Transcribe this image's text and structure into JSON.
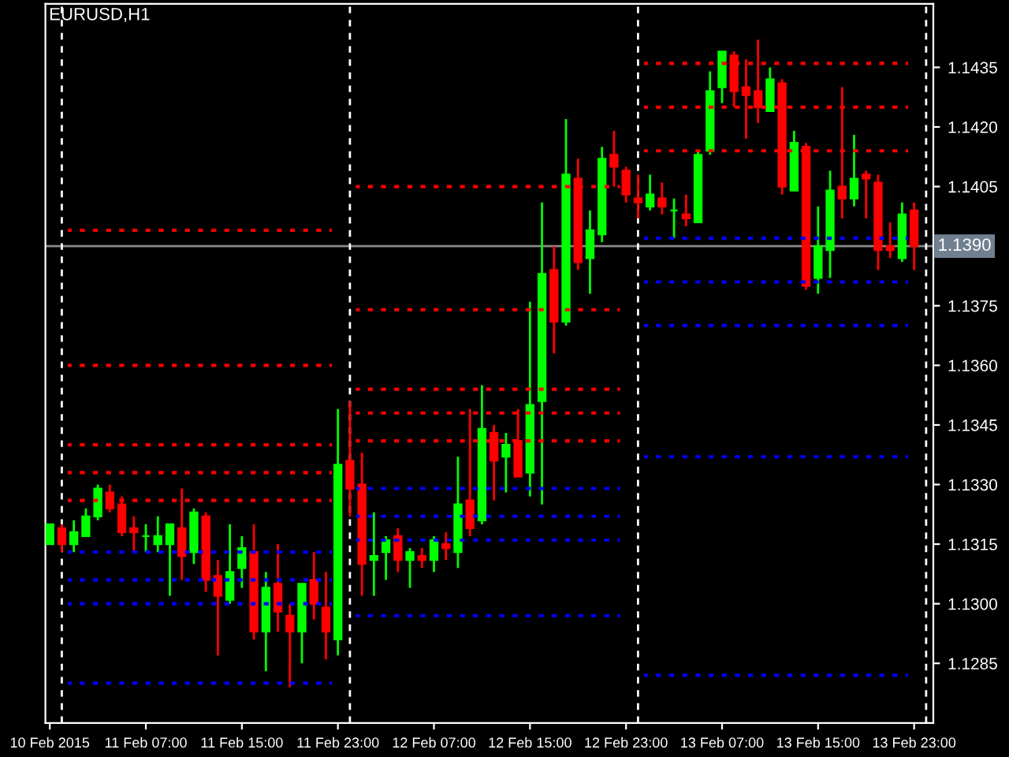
{
  "chart_data": {
    "type": "candlestick",
    "title": "EURUSD,H1",
    "x": [
      "2015-02-10T23:00",
      "2015-02-11T00:00",
      "2015-02-11T01:00",
      "2015-02-11T02:00",
      "2015-02-11T03:00",
      "2015-02-11T04:00",
      "2015-02-11T05:00",
      "2015-02-11T06:00",
      "2015-02-11T07:00",
      "2015-02-11T08:00",
      "2015-02-11T09:00",
      "2015-02-11T10:00",
      "2015-02-11T11:00",
      "2015-02-11T12:00",
      "2015-02-11T13:00",
      "2015-02-11T14:00",
      "2015-02-11T15:00",
      "2015-02-11T16:00",
      "2015-02-11T17:00",
      "2015-02-11T18:00",
      "2015-02-11T19:00",
      "2015-02-11T20:00",
      "2015-02-11T21:00",
      "2015-02-11T22:00",
      "2015-02-11T23:00",
      "2015-02-12T00:00",
      "2015-02-12T01:00",
      "2015-02-12T02:00",
      "2015-02-12T03:00",
      "2015-02-12T04:00",
      "2015-02-12T05:00",
      "2015-02-12T06:00",
      "2015-02-12T07:00",
      "2015-02-12T08:00",
      "2015-02-12T09:00",
      "2015-02-12T10:00",
      "2015-02-12T11:00",
      "2015-02-12T12:00",
      "2015-02-12T13:00",
      "2015-02-12T14:00",
      "2015-02-12T15:00",
      "2015-02-12T16:00",
      "2015-02-12T17:00",
      "2015-02-12T18:00",
      "2015-02-12T19:00",
      "2015-02-12T20:00",
      "2015-02-12T21:00",
      "2015-02-12T22:00",
      "2015-02-12T23:00",
      "2015-02-13T00:00",
      "2015-02-13T01:00",
      "2015-02-13T02:00",
      "2015-02-13T03:00",
      "2015-02-13T04:00",
      "2015-02-13T05:00",
      "2015-02-13T06:00",
      "2015-02-13T07:00",
      "2015-02-13T08:00",
      "2015-02-13T09:00",
      "2015-02-13T10:00",
      "2015-02-13T11:00",
      "2015-02-13T12:00",
      "2015-02-13T13:00",
      "2015-02-13T14:00",
      "2015-02-13T15:00",
      "2015-02-13T16:00",
      "2015-02-13T17:00",
      "2015-02-13T18:00",
      "2015-02-13T19:00",
      "2015-02-13T20:00",
      "2015-02-13T21:00",
      "2015-02-13T22:00",
      "2015-02-13T23:00"
    ],
    "ohlc": [
      [
        1.1315,
        1.132,
        1.1315,
        1.132
      ],
      [
        1.1319,
        1.132,
        1.1313,
        1.1315
      ],
      [
        1.1315,
        1.1321,
        1.1313,
        1.1318
      ],
      [
        1.1317,
        1.1324,
        1.1317,
        1.1322
      ],
      [
        1.1322,
        1.133,
        1.1321,
        1.1329
      ],
      [
        1.1328,
        1.133,
        1.1323,
        1.1324
      ],
      [
        1.1325,
        1.1327,
        1.1317,
        1.1318
      ],
      [
        1.1319,
        1.1322,
        1.1313,
        1.1318
      ],
      [
        1.1317,
        1.132,
        1.1313,
        1.1317
      ],
      [
        1.1315,
        1.1322,
        1.1313,
        1.1317
      ],
      [
        1.1315,
        1.132,
        1.1302,
        1.132
      ],
      [
        1.1319,
        1.1329,
        1.1306,
        1.1312
      ],
      [
        1.1313,
        1.1324,
        1.131,
        1.1323
      ],
      [
        1.1322,
        1.1323,
        1.1303,
        1.1306
      ],
      [
        1.1307,
        1.1311,
        1.1287,
        1.1302
      ],
      [
        1.1301,
        1.132,
        1.13,
        1.1308
      ],
      [
        1.1309,
        1.1317,
        1.1304,
        1.1314
      ],
      [
        1.1313,
        1.132,
        1.1291,
        1.1293
      ],
      [
        1.1293,
        1.1308,
        1.1283,
        1.1304
      ],
      [
        1.1305,
        1.1315,
        1.1293,
        1.1298
      ],
      [
        1.1297,
        1.13,
        1.1279,
        1.1293
      ],
      [
        1.1293,
        1.1305,
        1.1285,
        1.1305
      ],
      [
        1.1306,
        1.1313,
        1.1296,
        1.13
      ],
      [
        1.1299,
        1.1308,
        1.1286,
        1.1293
      ],
      [
        1.1291,
        1.1349,
        1.1287,
        1.1335
      ],
      [
        1.1336,
        1.1351,
        1.1322,
        1.1329
      ],
      [
        1.133,
        1.1338,
        1.1302,
        1.131
      ],
      [
        1.1311,
        1.1323,
        1.1302,
        1.1312
      ],
      [
        1.1313,
        1.1317,
        1.1306,
        1.1316
      ],
      [
        1.1317,
        1.1319,
        1.1308,
        1.1311
      ],
      [
        1.1311,
        1.1314,
        1.1304,
        1.1313
      ],
      [
        1.1312,
        1.1314,
        1.1309,
        1.1311
      ],
      [
        1.1311,
        1.1317,
        1.1308,
        1.1316
      ],
      [
        1.1315,
        1.1318,
        1.1311,
        1.1314
      ],
      [
        1.1313,
        1.1337,
        1.1309,
        1.1325
      ],
      [
        1.1326,
        1.1349,
        1.1317,
        1.1319
      ],
      [
        1.1321,
        1.1355,
        1.132,
        1.1344
      ],
      [
        1.1343,
        1.1345,
        1.1326,
        1.1336
      ],
      [
        1.1337,
        1.1343,
        1.1328,
        1.134
      ],
      [
        1.1341,
        1.1349,
        1.1332,
        1.1332
      ],
      [
        1.1333,
        1.1376,
        1.1327,
        1.135
      ],
      [
        1.1351,
        1.1401,
        1.1325,
        1.1383
      ],
      [
        1.1384,
        1.139,
        1.1363,
        1.1371
      ],
      [
        1.1371,
        1.1422,
        1.137,
        1.1408
      ],
      [
        1.1407,
        1.1412,
        1.1384,
        1.1386
      ],
      [
        1.1387,
        1.1399,
        1.1378,
        1.1394
      ],
      [
        1.1393,
        1.1415,
        1.1391,
        1.1412
      ],
      [
        1.1413,
        1.1419,
        1.1405,
        1.141
      ],
      [
        1.1409,
        1.141,
        1.1401,
        1.1403
      ],
      [
        1.1402,
        1.1408,
        1.1397,
        1.1401
      ],
      [
        1.14,
        1.1408,
        1.1399,
        1.1403
      ],
      [
        1.1402,
        1.1406,
        1.1398,
        1.14
      ],
      [
        1.1399,
        1.1402,
        1.1392,
        1.1399
      ],
      [
        1.1398,
        1.1403,
        1.1395,
        1.1397
      ],
      [
        1.1396,
        1.1414,
        1.1396,
        1.1413
      ],
      [
        1.1414,
        1.1434,
        1.1413,
        1.1429
      ],
      [
        1.143,
        1.1439,
        1.1426,
        1.1439
      ],
      [
        1.1438,
        1.1439,
        1.1425,
        1.1429
      ],
      [
        1.143,
        1.1437,
        1.1417,
        1.1428
      ],
      [
        1.1429,
        1.1442,
        1.1421,
        1.1425
      ],
      [
        1.1424,
        1.1435,
        1.1424,
        1.1432
      ],
      [
        1.1431,
        1.1432,
        1.1403,
        1.1405
      ],
      [
        1.1404,
        1.1419,
        1.1404,
        1.1416
      ],
      [
        1.1415,
        1.1416,
        1.1379,
        1.138
      ],
      [
        1.1382,
        1.14,
        1.1378,
        1.139
      ],
      [
        1.1389,
        1.1409,
        1.1382,
        1.1404
      ],
      [
        1.1405,
        1.143,
        1.1397,
        1.1402
      ],
      [
        1.1402,
        1.1418,
        1.14,
        1.1407
      ],
      [
        1.1408,
        1.1409,
        1.1397,
        1.1407
      ],
      [
        1.1406,
        1.1408,
        1.1384,
        1.1389
      ],
      [
        1.139,
        1.1396,
        1.1387,
        1.1389
      ],
      [
        1.1387,
        1.1401,
        1.1386,
        1.1398
      ],
      [
        1.1399,
        1.1401,
        1.1384,
        1.139
      ]
    ],
    "colors": [
      "#00ff00",
      "#ff0000",
      "#00ff00",
      "#00ff00",
      "#00ff00",
      "#ff0000",
      "#ff0000",
      "#ff0000",
      "#00ff00",
      "#00ff00",
      "#00ff00",
      "#ff0000",
      "#00ff00",
      "#ff0000",
      "#ff0000",
      "#00ff00",
      "#00ff00",
      "#ff0000",
      "#00ff00",
      "#ff0000",
      "#ff0000",
      "#00ff00",
      "#ff0000",
      "#ff0000",
      "#00ff00",
      "#ff0000",
      "#ff0000",
      "#00ff00",
      "#00ff00",
      "#ff0000",
      "#00ff00",
      "#ff0000",
      "#00ff00",
      "#ff0000",
      "#00ff00",
      "#ff0000",
      "#00ff00",
      "#ff0000",
      "#00ff00",
      "#ff0000",
      "#00ff00",
      "#00ff00",
      "#ff0000",
      "#00ff00",
      "#ff0000",
      "#00ff00",
      "#00ff00",
      "#ff0000",
      "#ff0000",
      "#ff0000",
      "#00ff00",
      "#ff0000",
      "#00ff00",
      "#ff0000",
      "#00ff00",
      "#00ff00",
      "#00ff00",
      "#ff0000",
      "#ff0000",
      "#ff0000",
      "#00ff00",
      "#ff0000",
      "#00ff00",
      "#ff0000",
      "#00ff00",
      "#00ff00",
      "#ff0000",
      "#00ff00",
      "#ff0000",
      "#ff0000",
      "#ff0000",
      "#00ff00",
      "#ff0000"
    ],
    "series": [
      {
        "type": "line",
        "color": "#ff0000",
        "x": [
          "2015-02-11T00:30",
          "2015-02-11T22:30"
        ],
        "values": [
          1.1394,
          1.1394
        ]
      },
      {
        "type": "line",
        "color": "#ff0000",
        "x": [
          "2015-02-11T00:30",
          "2015-02-11T22:30"
        ],
        "values": [
          1.136,
          1.136
        ]
      },
      {
        "type": "line",
        "color": "#ff0000",
        "x": [
          "2015-02-11T00:30",
          "2015-02-11T22:30"
        ],
        "values": [
          1.134,
          1.134
        ]
      },
      {
        "type": "line",
        "color": "#ff0000",
        "x": [
          "2015-02-11T00:30",
          "2015-02-11T22:30"
        ],
        "values": [
          1.1333,
          1.1333
        ]
      },
      {
        "type": "line",
        "color": "#ff0000",
        "x": [
          "2015-02-11T00:30",
          "2015-02-11T22:30"
        ],
        "values": [
          1.1326,
          1.1326
        ]
      },
      {
        "type": "line",
        "color": "#0000ff",
        "x": [
          "2015-02-11T00:30",
          "2015-02-11T22:30"
        ],
        "values": [
          1.1313,
          1.1313
        ]
      },
      {
        "type": "line",
        "color": "#0000ff",
        "x": [
          "2015-02-11T00:30",
          "2015-02-11T22:30"
        ],
        "values": [
          1.1306,
          1.1306
        ]
      },
      {
        "type": "line",
        "color": "#0000ff",
        "x": [
          "2015-02-11T00:30",
          "2015-02-11T22:30"
        ],
        "values": [
          1.13,
          1.13
        ]
      },
      {
        "type": "line",
        "color": "#0000ff",
        "x": [
          "2015-02-11T00:30",
          "2015-02-11T22:30"
        ],
        "values": [
          1.128,
          1.128
        ]
      },
      {
        "type": "line",
        "color": "#ff0000",
        "x": [
          "2015-02-12T00:30",
          "2015-02-12T22:30"
        ],
        "values": [
          1.1405,
          1.1405
        ]
      },
      {
        "type": "line",
        "color": "#ff0000",
        "x": [
          "2015-02-12T00:30",
          "2015-02-12T22:30"
        ],
        "values": [
          1.1374,
          1.1374
        ]
      },
      {
        "type": "line",
        "color": "#ff0000",
        "x": [
          "2015-02-12T00:30",
          "2015-02-12T22:30"
        ],
        "values": [
          1.1354,
          1.1354
        ]
      },
      {
        "type": "line",
        "color": "#ff0000",
        "x": [
          "2015-02-12T00:30",
          "2015-02-12T22:30"
        ],
        "values": [
          1.1348,
          1.1348
        ]
      },
      {
        "type": "line",
        "color": "#ff0000",
        "x": [
          "2015-02-12T00:30",
          "2015-02-12T22:30"
        ],
        "values": [
          1.1341,
          1.1341
        ]
      },
      {
        "type": "line",
        "color": "#0000ff",
        "x": [
          "2015-02-12T00:30",
          "2015-02-12T22:30"
        ],
        "values": [
          1.1329,
          1.1329
        ]
      },
      {
        "type": "line",
        "color": "#0000ff",
        "x": [
          "2015-02-12T00:30",
          "2015-02-12T22:30"
        ],
        "values": [
          1.1322,
          1.1322
        ]
      },
      {
        "type": "line",
        "color": "#0000ff",
        "x": [
          "2015-02-12T00:30",
          "2015-02-12T22:30"
        ],
        "values": [
          1.1316,
          1.1316
        ]
      },
      {
        "type": "line",
        "color": "#0000ff",
        "x": [
          "2015-02-12T00:30",
          "2015-02-12T22:30"
        ],
        "values": [
          1.1297,
          1.1297
        ]
      },
      {
        "type": "line",
        "color": "#ff0000",
        "x": [
          "2015-02-13T00:30",
          "2015-02-13T22:30"
        ],
        "values": [
          1.1436,
          1.1436
        ]
      },
      {
        "type": "line",
        "color": "#ff0000",
        "x": [
          "2015-02-13T00:30",
          "2015-02-13T22:30"
        ],
        "values": [
          1.1425,
          1.1425
        ]
      },
      {
        "type": "line",
        "color": "#ff0000",
        "x": [
          "2015-02-13T00:30",
          "2015-02-13T22:30"
        ],
        "values": [
          1.1414,
          1.1414
        ]
      },
      {
        "type": "line",
        "color": "#0000ff",
        "x": [
          "2015-02-13T00:30",
          "2015-02-13T22:30"
        ],
        "values": [
          1.1392,
          1.1392
        ]
      },
      {
        "type": "line",
        "color": "#0000ff",
        "x": [
          "2015-02-13T00:30",
          "2015-02-13T22:30"
        ],
        "values": [
          1.1381,
          1.1381
        ]
      },
      {
        "type": "line",
        "color": "#0000ff",
        "x": [
          "2015-02-13T00:30",
          "2015-02-13T22:30"
        ],
        "values": [
          1.137,
          1.137
        ]
      },
      {
        "type": "line",
        "color": "#0000ff",
        "x": [
          "2015-02-13T00:30",
          "2015-02-13T22:30"
        ],
        "values": [
          1.1337,
          1.1337
        ]
      },
      {
        "type": "line",
        "color": "#0000ff",
        "x": [
          "2015-02-13T00:30",
          "2015-02-13T22:30"
        ],
        "values": [
          1.1282,
          1.1282
        ]
      }
    ],
    "line_style": "dotted",
    "xlim": [
      "2015-02-10T22:38",
      "2015-02-14T00:36"
    ],
    "xticks": [
      {
        "value": "2015-02-10T23:00",
        "label": "10 Feb 2015"
      },
      {
        "value": "2015-02-11T07:00",
        "label": "11 Feb 07:00"
      },
      {
        "value": "2015-02-11T15:00",
        "label": "11 Feb 15:00"
      },
      {
        "value": "2015-02-11T23:00",
        "label": "11 Feb 23:00"
      },
      {
        "value": "2015-02-12T07:00",
        "label": "12 Feb 07:00"
      },
      {
        "value": "2015-02-12T15:00",
        "label": "12 Feb 15:00"
      },
      {
        "value": "2015-02-12T23:00",
        "label": "12 Feb 23:00"
      },
      {
        "value": "2015-02-13T07:00",
        "label": "13 Feb 07:00"
      },
      {
        "value": "2015-02-13T15:00",
        "label": "13 Feb 15:00"
      },
      {
        "value": "2015-02-13T23:00",
        "label": "13 Feb 23:00"
      }
    ],
    "ylim": [
      1.127,
      1.1451
    ],
    "yticks": [
      {
        "value": 1.1285,
        "label": "1.1285"
      },
      {
        "value": 1.13,
        "label": "1.1300"
      },
      {
        "value": 1.1315,
        "label": "1.1315"
      },
      {
        "value": 1.133,
        "label": "1.1330"
      },
      {
        "value": 1.1345,
        "label": "1.1345"
      },
      {
        "value": 1.136,
        "label": "1.1360"
      },
      {
        "value": 1.1375,
        "label": "1.1375"
      },
      {
        "value": 1.1405,
        "label": "1.1405"
      },
      {
        "value": 1.142,
        "label": "1.1420"
      },
      {
        "value": 1.1435,
        "label": "1.1435"
      }
    ],
    "ref_lines": [
      {
        "axis": "y",
        "value": 1.139,
        "label": "1.1390",
        "color": "#8a8a8a",
        "line_style": "solid"
      },
      {
        "axis": "x",
        "value": "2015-02-11T00:00",
        "color": "#ffffff",
        "line_style": "dashed"
      },
      {
        "axis": "x",
        "value": "2015-02-12T00:00",
        "color": "#ffffff",
        "line_style": "dashed"
      },
      {
        "axis": "x",
        "value": "2015-02-13T00:00",
        "color": "#ffffff",
        "line_style": "dashed"
      },
      {
        "axis": "x",
        "value": "2015-02-14T00:00",
        "color": "#ffffff",
        "line_style": "dashed"
      }
    ],
    "grid": false,
    "legend": false
  }
}
